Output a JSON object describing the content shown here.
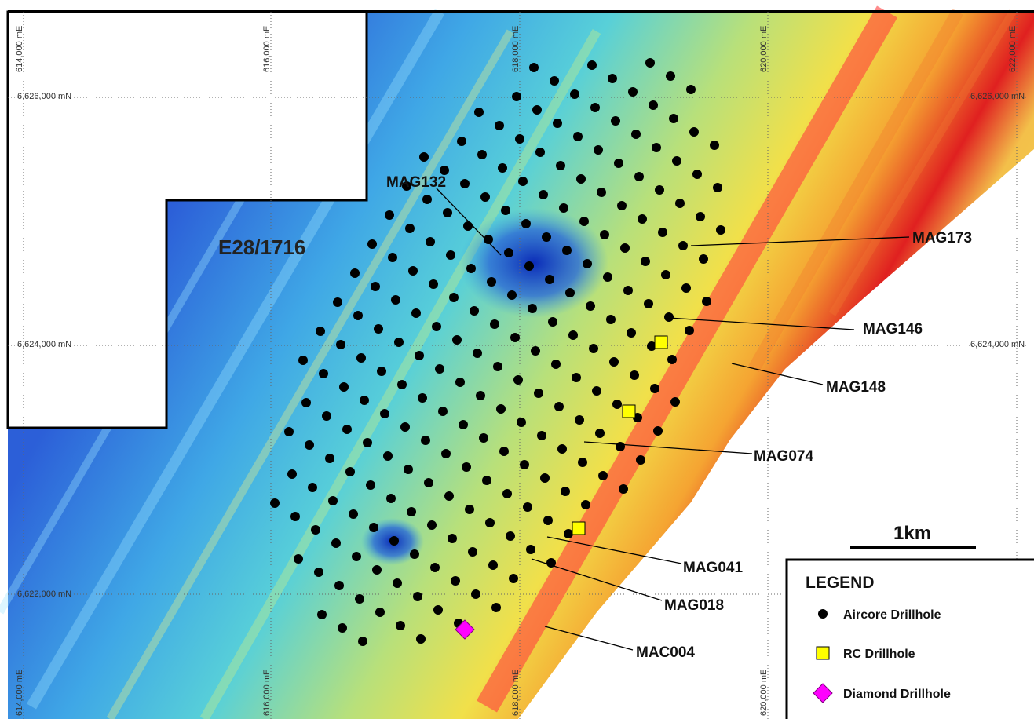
{
  "grid": {
    "eastings_top": [
      "614,000 mE",
      "616,000 mE",
      "618,000 mE",
      "620,000 mE",
      "622,000 mE"
    ],
    "eastings_bottom": [
      "614,000 mE",
      "616,000 mE",
      "618,000 mE",
      "620,000 mE"
    ],
    "northings_left": [
      "6,626,000 mN",
      "6,624,000 mN",
      "6,622,000 mN"
    ],
    "northings_right": [
      "6,626,000 mN",
      "6,624,000 mN"
    ]
  },
  "tenement": "E28/1716",
  "holes": [
    {
      "label": "MAG132"
    },
    {
      "label": "MAG173"
    },
    {
      "label": "MAG146"
    },
    {
      "label": "MAG148"
    },
    {
      "label": "MAG074"
    },
    {
      "label": "MAG041"
    },
    {
      "label": "MAG018"
    },
    {
      "label": "MAC004"
    }
  ],
  "scale": "1km",
  "legend": {
    "title": "LEGEND",
    "items": [
      "Aircore Drillhole",
      "RC Drillhole",
      "Diamond Drillhole"
    ]
  }
}
